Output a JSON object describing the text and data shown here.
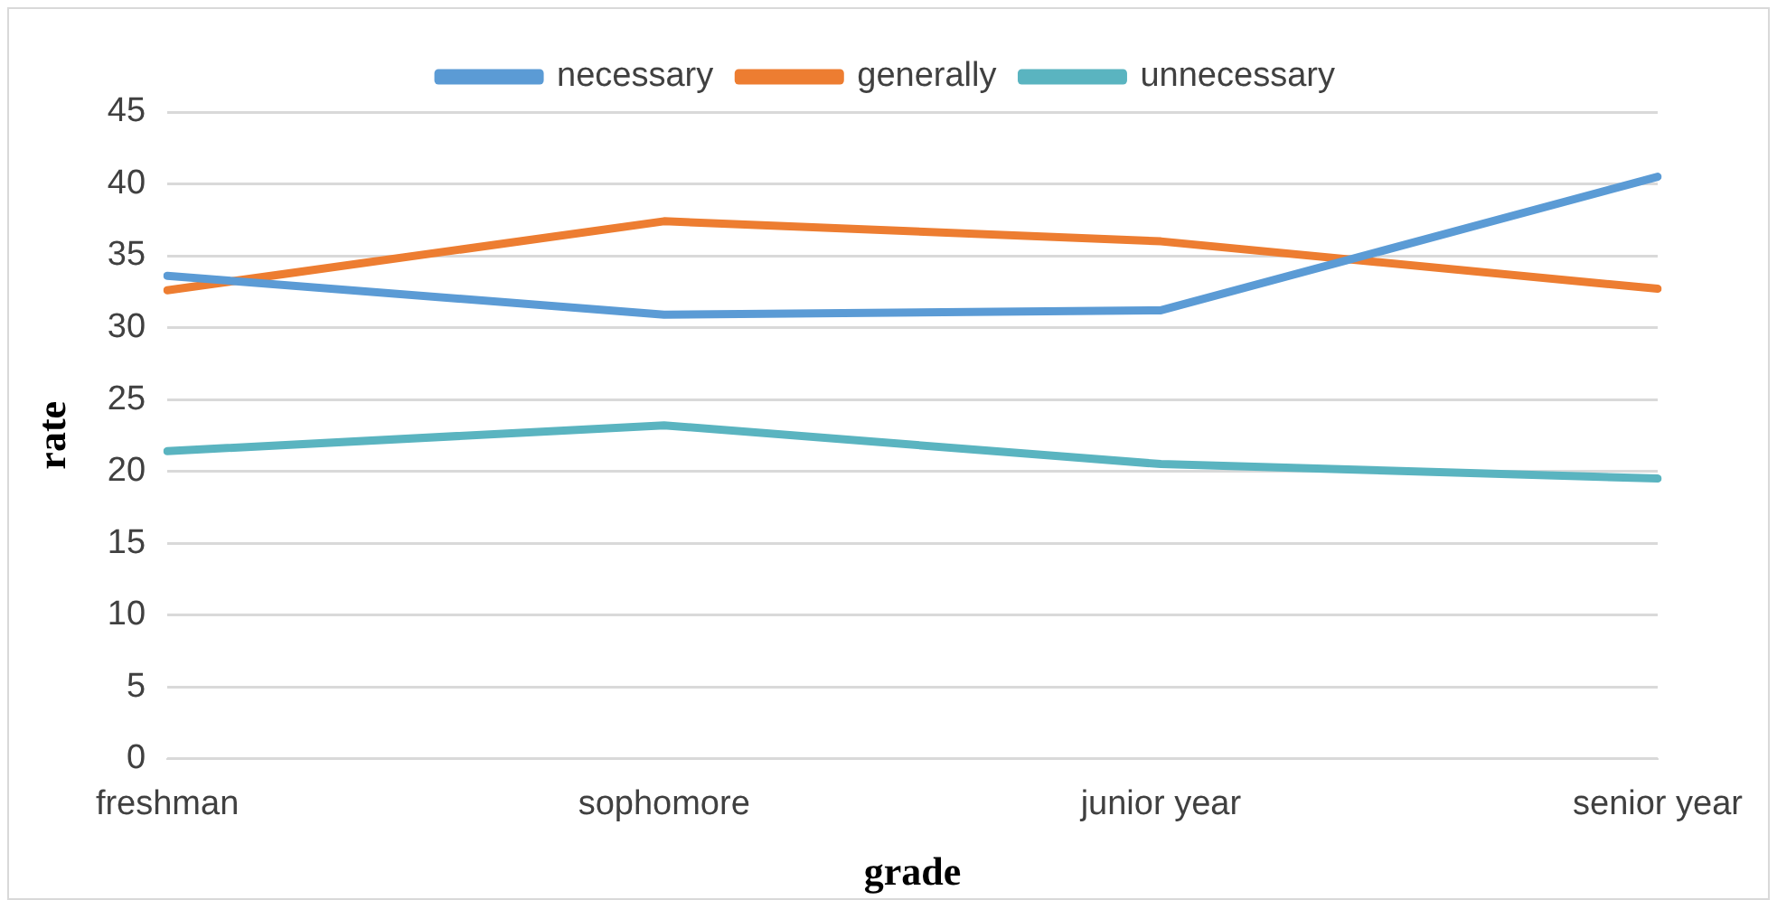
{
  "chart_data": {
    "type": "line",
    "xlabel": "grade",
    "ylabel": "rate",
    "categories": [
      "freshman",
      "sophomore",
      "junior year",
      "senior year"
    ],
    "series": [
      {
        "name": "necessary",
        "color": "#5b9bd5",
        "values": [
          33.6,
          30.9,
          31.2,
          40.5
        ]
      },
      {
        "name": "generally",
        "color": "#ed7d31",
        "values": [
          32.6,
          37.4,
          36.0,
          32.7
        ]
      },
      {
        "name": "unnecessary",
        "color": "#5ab4c0",
        "values": [
          21.4,
          23.2,
          20.5,
          19.5
        ]
      }
    ],
    "ylim": [
      0,
      45
    ],
    "yticks": [
      0,
      5,
      10,
      15,
      20,
      25,
      30,
      35,
      40,
      45
    ],
    "grid": "y",
    "legend": "top",
    "marker": "none",
    "line_style": "solid"
  }
}
